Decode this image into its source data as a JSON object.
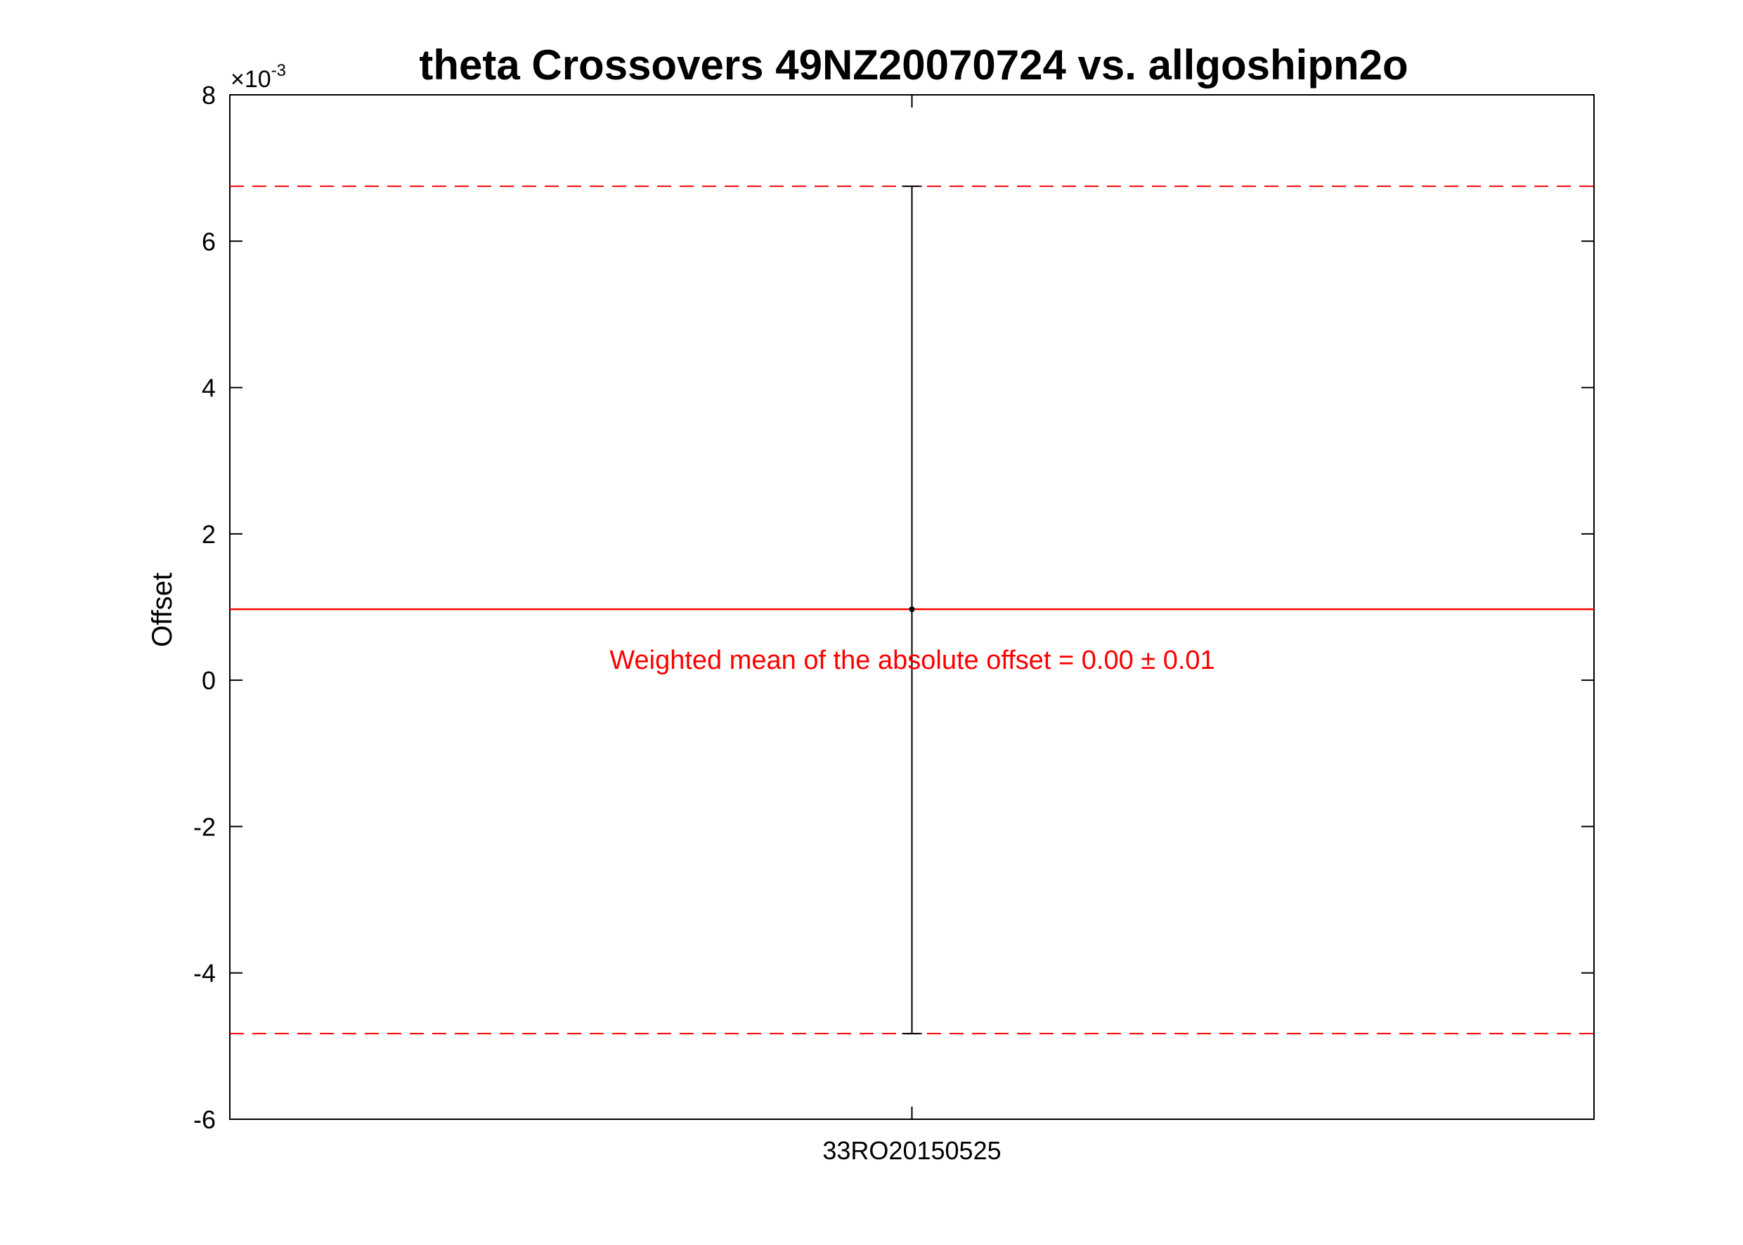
{
  "chart_data": {
    "type": "scatter",
    "title": "theta Crossovers 49NZ20070724 vs. allgoshipn2o",
    "xlabel": "",
    "ylabel": "Offset",
    "y_scale_multiplier": "×10",
    "y_scale_exponent": "-3",
    "ylim": [
      -6,
      8
    ],
    "yticks": [
      -6,
      -4,
      -2,
      0,
      2,
      4,
      6,
      8
    ],
    "ytick_labels": [
      "-6",
      "-4",
      "-2",
      "0",
      "2",
      "4",
      "6",
      "8"
    ],
    "categories": [
      "33RO20150525"
    ],
    "points": [
      {
        "category": "33RO20150525",
        "value": 0.97,
        "err_low": -4.83,
        "err_high": 6.75
      }
    ],
    "mean_line": 0.97,
    "bound_lines": [
      6.75,
      -4.83
    ],
    "annotation": "Weighted mean of the absolute offset = 0.00 ± 0.01",
    "colors": {
      "mean": "#ff0000",
      "bounds": "#ff0000",
      "point": "#000000",
      "axes": "#000000"
    },
    "grid": false
  }
}
